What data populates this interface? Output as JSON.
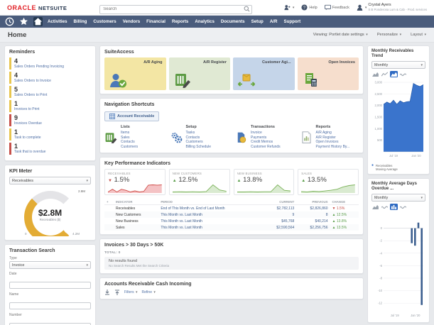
{
  "ui": {
    "caret": "▾",
    "up_arrow": "▲",
    "down_arrow": "▼",
    "plus": "+",
    "legend_dot": "●"
  },
  "topbar": {
    "logo_oracle": "ORACLE",
    "logo_netsuite": "NETSUITE",
    "search_placeholder": "Search",
    "help_label": "Help",
    "feedback_label": "Feedback",
    "user_name": "Crystal Ayers",
    "user_org": "S B Ponderosa Lum & Cab - Prod. services"
  },
  "nav": {
    "items": [
      "Activities",
      "Billing",
      "Customers",
      "Vendors",
      "Financial",
      "Reports",
      "Analytics",
      "Documents",
      "Setup",
      "A/R",
      "Support"
    ]
  },
  "page_header": {
    "title": "Home",
    "viewing_label": "Viewing: Portlet date settings",
    "personalize_label": "Personalize",
    "layout_label": "Layout"
  },
  "reminders": {
    "title": "Reminders",
    "items": [
      {
        "count": "4",
        "label": "Sales Orders Pending Invoicing",
        "severity": "warn"
      },
      {
        "count": "4",
        "label": "Sales Orders to Invoice",
        "severity": "warn"
      },
      {
        "count": "5",
        "label": "Sales Orders to Print",
        "severity": "warn"
      },
      {
        "count": "1",
        "label": "Invoices to Print",
        "severity": "warn"
      },
      {
        "count": "9",
        "label": "Invoices Overdue",
        "severity": "alert"
      },
      {
        "count": "1",
        "label": "Task to complete",
        "severity": "warn"
      },
      {
        "count": "1",
        "label": "Task that is overdue",
        "severity": "alert"
      }
    ]
  },
  "kpi_meter": {
    "title": "KPI Meter",
    "selected": "Receivables",
    "value": "$2.8M",
    "sublabel": "Receivables ($)",
    "min_label": "0",
    "max_label": "4.2M",
    "marker_label": "2.8M",
    "fraction": 0.667,
    "arc_color": "#e3ac35"
  },
  "transaction_search": {
    "title": "Transaction Search",
    "fields": [
      {
        "label": "Type",
        "kind": "select",
        "value": "Invoice"
      },
      {
        "label": "Date",
        "kind": "input",
        "value": ""
      },
      {
        "label": "Name",
        "kind": "input",
        "value": ""
      },
      {
        "label": "Number",
        "kind": "input",
        "value": ""
      }
    ]
  },
  "suiteaccess": {
    "title": "SuiteAccess",
    "tiles": [
      {
        "label": "A/R Aging",
        "bg": "#f3e6a4",
        "icon": "person-check"
      },
      {
        "label": "A/R Register",
        "bg": "#e0e9d3",
        "icon": "register"
      },
      {
        "label": "Customer Agi...",
        "bg": "#c5d5e9",
        "icon": "customer-transfer"
      },
      {
        "label": "Open Invoices",
        "bg": "#f6decd",
        "icon": "invoice-calc"
      }
    ]
  },
  "shortcuts": {
    "title": "Navigation Shortcuts",
    "pill_label": "Account Receivable",
    "groups": [
      {
        "heading": "Lists",
        "icon": "ledger",
        "links": [
          "Items",
          "Sales",
          "Contacts",
          "Customers"
        ]
      },
      {
        "heading": "Setup",
        "icon": "gears",
        "links": [
          "Tasks",
          "Contacts",
          "Customers",
          "Billing Schedule"
        ]
      },
      {
        "heading": "Transactions",
        "icon": "file-coin",
        "links": [
          "Invoice",
          "Payments",
          "Credit Memos",
          "Customer Refunds"
        ]
      },
      {
        "heading": "Reports",
        "icon": "report-doc",
        "links": [
          "A/R Aging",
          "A/R Register",
          "Open Invoices",
          "Payment History By..."
        ]
      }
    ]
  },
  "kpis": {
    "title": "Key Performance Indicators",
    "cards": [
      {
        "name": "RECEIVABLES",
        "change": "1.5%",
        "direction": "down",
        "line": "#cf4a45",
        "fill": "#f4c2c4",
        "spark": [
          2,
          3,
          2,
          3,
          2.6,
          2,
          2.4,
          2,
          2.2,
          4.5,
          4.6,
          4.5,
          4.6
        ]
      },
      {
        "name": "NEW CUSTOMERS",
        "change": "12.5%",
        "direction": "up",
        "line": "#7cb35a",
        "fill": "#d9ead0",
        "spark": [
          0.3,
          0.4,
          0.3,
          0.4,
          0.3,
          0.5,
          3.5,
          1.2,
          0.6
        ]
      },
      {
        "name": "NEW BUSINESS",
        "change": "13.8%",
        "direction": "up",
        "line": "#7cb35a",
        "fill": "#d9ead0",
        "spark": [
          0.3,
          0.3,
          0.4,
          0.3,
          0.4,
          0.4,
          3.4,
          1.0,
          0.7
        ]
      },
      {
        "name": "SALES",
        "change": "13.5%",
        "direction": "up",
        "line": "#7cb35a",
        "fill": "#d9ead0",
        "spark": [
          0.8,
          0.7,
          0.9,
          0.8,
          1.0,
          1.2,
          1.5,
          2.2,
          2.6,
          2.8
        ]
      }
    ],
    "table": {
      "headers": [
        "INDICATOR",
        "PERIOD",
        "CURRENT",
        "PREVIOUS",
        "CHANGE"
      ],
      "rows": [
        {
          "indicator": "Receivables",
          "period": "End of This Month vs. End of Last Month",
          "current": "$2,782,113",
          "previous": "$2,826,860",
          "change": "1.5%",
          "direction": "down"
        },
        {
          "indicator": "New Customers",
          "period": "This Month vs. Last Month",
          "current": "9",
          "previous": "8",
          "change": "12.5%",
          "direction": "up"
        },
        {
          "indicator": "New Business",
          "period": "This Month vs. Last Month",
          "current": "$45,768",
          "previous": "$40,214",
          "change": "13.8%",
          "direction": "up"
        },
        {
          "indicator": "Sales",
          "period": "This Month vs. Last Month",
          "current": "$2,590,564",
          "previous": "$2,256,756",
          "change": "13.5%",
          "direction": "up"
        }
      ]
    }
  },
  "invoices_over_30": {
    "title": "Invoices > 30 Days > 50K",
    "total_label": "TOTAL: 0",
    "empty_title": "No results found",
    "empty_sub": "No Search Results Met the Search Criteria"
  },
  "ar_cash": {
    "title": "Accounts Receivable Cash Incoming",
    "toolbar_links": [
      "Filters",
      "Refine"
    ]
  },
  "receivables_trend": {
    "title": "Monthly Receivables Trend",
    "period": "Monthly",
    "type": "area",
    "color": "#3a74cc",
    "y_ticks": [
      3000,
      2500,
      2000,
      1500,
      1000,
      500
    ],
    "y_range": [
      0,
      3000
    ],
    "values": [
      2050,
      2150,
      2080,
      2230,
      2050,
      2200,
      2120,
      2160,
      2180,
      2950,
      2870,
      2820,
      2900
    ],
    "x_labels": [
      "Jul '19",
      "Jan '20"
    ],
    "legend": [
      "Receivables",
      "Moving Average"
    ],
    "tools": [
      {
        "icon": "area",
        "selected": false
      },
      {
        "icon": "line",
        "selected": false
      },
      {
        "icon": "areasel",
        "selected": true
      },
      {
        "icon": "wave",
        "selected": false
      }
    ]
  },
  "days_overdue": {
    "title": "Monthly Average Days Overdue ...",
    "period": "Monthly",
    "type": "bar",
    "color": "#3c5f8f",
    "y_ticks": [
      0,
      -2,
      -4,
      -6,
      -8,
      -10,
      -12
    ],
    "y_range": [
      2,
      -13
    ],
    "values": [
      0,
      0,
      0,
      0,
      0,
      0,
      0,
      0,
      -2.4,
      -2.8,
      0.9,
      -12.3
    ],
    "x_labels": [
      "Jul '19",
      "Jan '20"
    ],
    "tools": [
      {
        "icon": "area",
        "selected": false
      },
      {
        "icon": "wave",
        "selected": false
      },
      {
        "icon": "bar",
        "selected": true
      },
      {
        "icon": "wave",
        "selected": false
      }
    ]
  }
}
